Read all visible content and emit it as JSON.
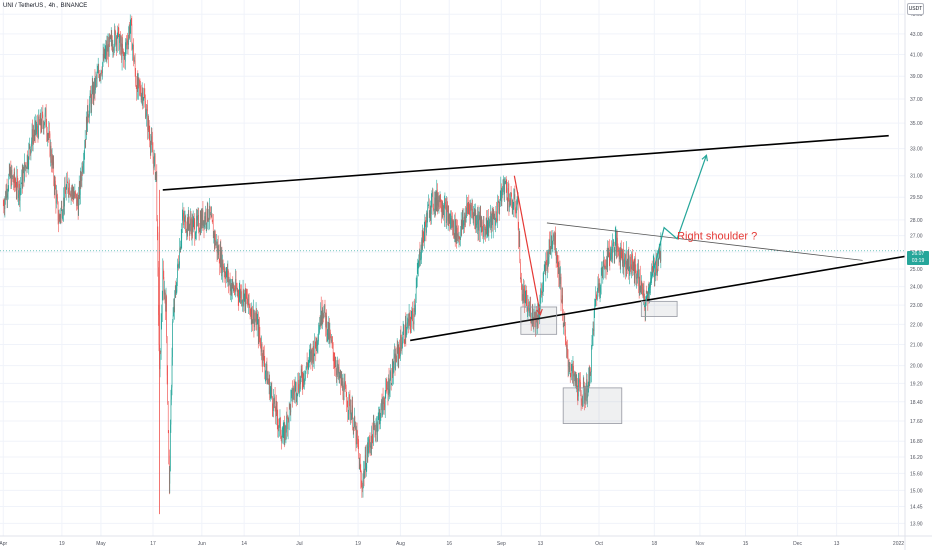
{
  "header": {
    "symbol": "UNI / TetherUS",
    "interval": "4h",
    "exchange": "BINANCE",
    "currency": "USDT"
  },
  "last_price": {
    "value": "26.07",
    "countdown": "03:19",
    "color": "#26a69a"
  },
  "colors": {
    "up": "#26a69a",
    "down": "#ef5350",
    "trendline": "#000000",
    "arrow_down": "#e53935",
    "arrow_up": "#26a69a",
    "annotation": "#e53935",
    "grid": "#f0f3fa",
    "axis_text": "#50535e",
    "box_border": "#9598a1"
  },
  "chart_data": {
    "type": "candlestick",
    "grid": true,
    "scale": "log",
    "ylim": [
      13.5,
      46.5
    ],
    "y_ticks": [
      "45.00",
      "43.00",
      "41.00",
      "39.00",
      "37.00",
      "35.00",
      "33.00",
      "31.00",
      "29.50",
      "28.00",
      "27.00",
      "26.00",
      "25.00",
      "24.00",
      "23.00",
      "22.00",
      "21.00",
      "20.00",
      "19.20",
      "18.40",
      "17.60",
      "16.80",
      "16.20",
      "15.60",
      "15.00",
      "14.45",
      "13.90"
    ],
    "x_ticks": [
      "Apr",
      "19",
      "May",
      "17",
      "Jun",
      "14",
      "Jul",
      "19",
      "Aug",
      "16",
      "Sep",
      "13",
      "Oct",
      "18",
      "Nov",
      "15",
      "Dec",
      "13",
      "2022"
    ],
    "x_range": [
      "2021-03-31",
      "2022-01-03"
    ],
    "daily_close": [
      [
        "2021-04-01",
        29.0
      ],
      [
        "2021-04-03",
        31.0
      ],
      [
        "2021-04-06",
        30.0
      ],
      [
        "2021-04-10",
        34.0
      ],
      [
        "2021-04-14",
        35.5
      ],
      [
        "2021-04-16",
        32.0
      ],
      [
        "2021-04-18",
        28.0
      ],
      [
        "2021-04-21",
        30.5
      ],
      [
        "2021-04-24",
        29.0
      ],
      [
        "2021-04-27",
        36.0
      ],
      [
        "2021-04-30",
        39.0
      ],
      [
        "2021-05-03",
        41.5
      ],
      [
        "2021-05-06",
        43.0
      ],
      [
        "2021-05-08",
        40.5
      ],
      [
        "2021-05-10",
        44.0
      ],
      [
        "2021-05-12",
        38.0
      ],
      [
        "2021-05-14",
        37.5
      ],
      [
        "2021-05-16",
        34.0
      ],
      [
        "2021-05-18",
        31.0
      ],
      [
        "2021-05-19",
        19.5
      ],
      [
        "2021-05-20",
        24.5
      ],
      [
        "2021-05-21",
        23.0
      ],
      [
        "2021-05-22",
        15.0
      ],
      [
        "2021-05-23",
        22.0
      ],
      [
        "2021-05-26",
        28.0
      ],
      [
        "2021-05-30",
        27.5
      ],
      [
        "2021-06-03",
        28.5
      ],
      [
        "2021-06-06",
        26.0
      ],
      [
        "2021-06-10",
        24.0
      ],
      [
        "2021-06-14",
        23.5
      ],
      [
        "2021-06-18",
        22.0
      ],
      [
        "2021-06-21",
        19.5
      ],
      [
        "2021-06-24",
        17.8
      ],
      [
        "2021-06-26",
        16.9
      ],
      [
        "2021-06-29",
        18.8
      ],
      [
        "2021-07-02",
        19.5
      ],
      [
        "2021-07-06",
        21.0
      ],
      [
        "2021-07-08",
        23.0
      ],
      [
        "2021-07-10",
        21.5
      ],
      [
        "2021-07-13",
        19.5
      ],
      [
        "2021-07-17",
        18.0
      ],
      [
        "2021-07-19",
        16.5
      ],
      [
        "2021-07-20",
        15.1
      ],
      [
        "2021-07-22",
        16.5
      ],
      [
        "2021-07-26",
        18.0
      ],
      [
        "2021-07-30",
        20.0
      ],
      [
        "2021-08-02",
        21.5
      ],
      [
        "2021-08-05",
        22.5
      ],
      [
        "2021-08-07",
        26.0
      ],
      [
        "2021-08-10",
        29.0
      ],
      [
        "2021-08-13",
        29.5
      ],
      [
        "2021-08-16",
        28.0
      ],
      [
        "2021-08-19",
        27.0
      ],
      [
        "2021-08-22",
        29.0
      ],
      [
        "2021-08-26",
        27.5
      ],
      [
        "2021-08-30",
        28.0
      ],
      [
        "2021-09-02",
        30.5
      ],
      [
        "2021-09-04",
        29.0
      ],
      [
        "2021-09-06",
        29.0
      ],
      [
        "2021-09-07",
        24.0
      ],
      [
        "2021-09-09",
        22.8
      ],
      [
        "2021-09-12",
        22.3
      ],
      [
        "2021-09-15",
        25.5
      ],
      [
        "2021-09-17",
        27.3
      ],
      [
        "2021-09-19",
        24.5
      ],
      [
        "2021-09-21",
        20.5
      ],
      [
        "2021-09-23",
        19.5
      ],
      [
        "2021-09-26",
        18.6
      ],
      [
        "2021-09-28",
        19.2
      ],
      [
        "2021-09-30",
        23.5
      ],
      [
        "2021-10-03",
        25.5
      ],
      [
        "2021-10-06",
        26.5
      ],
      [
        "2021-10-09",
        25.5
      ],
      [
        "2021-10-12",
        25.0
      ],
      [
        "2021-10-14",
        24.0
      ],
      [
        "2021-10-15",
        22.9
      ],
      [
        "2021-10-17",
        24.5
      ],
      [
        "2021-10-19",
        25.5
      ],
      [
        "2021-10-20",
        26.07
      ]
    ]
  },
  "drawings": {
    "upper_trendline": {
      "from": [
        "2021-05-20",
        30.0
      ],
      "to": [
        "2021-12-29",
        34.0
      ]
    },
    "lower_trendline": {
      "from": [
        "2021-08-04",
        21.2
      ],
      "to": [
        "2022-01-05",
        25.8
      ]
    },
    "descending_line": {
      "from": [
        "2021-09-15",
        27.8
      ],
      "to": [
        "2021-12-21",
        25.5
      ]
    },
    "down_arrow": {
      "from": [
        "2021-09-05",
        31.0
      ],
      "to": [
        "2021-09-13",
        22.5
      ]
    },
    "up_arrow": {
      "points": [
        [
          "2021-10-15",
          22.9
        ],
        [
          "2021-10-21",
          27.5
        ],
        [
          "2021-10-25",
          26.8
        ],
        [
          "2021-11-03",
          32.5
        ]
      ]
    },
    "boxes": [
      {
        "x": [
          "2021-09-07",
          "2021-09-18"
        ],
        "y": [
          21.5,
          22.9
        ]
      },
      {
        "x": [
          "2021-09-20",
          "2021-10-08"
        ],
        "y": [
          17.5,
          19.0
        ]
      },
      {
        "x": [
          "2021-10-14",
          "2021-10-25"
        ],
        "y": [
          22.4,
          23.2
        ]
      }
    ],
    "annotation": {
      "text": "Right shoulder ?",
      "at": [
        "2021-10-25",
        27.0
      ]
    }
  }
}
